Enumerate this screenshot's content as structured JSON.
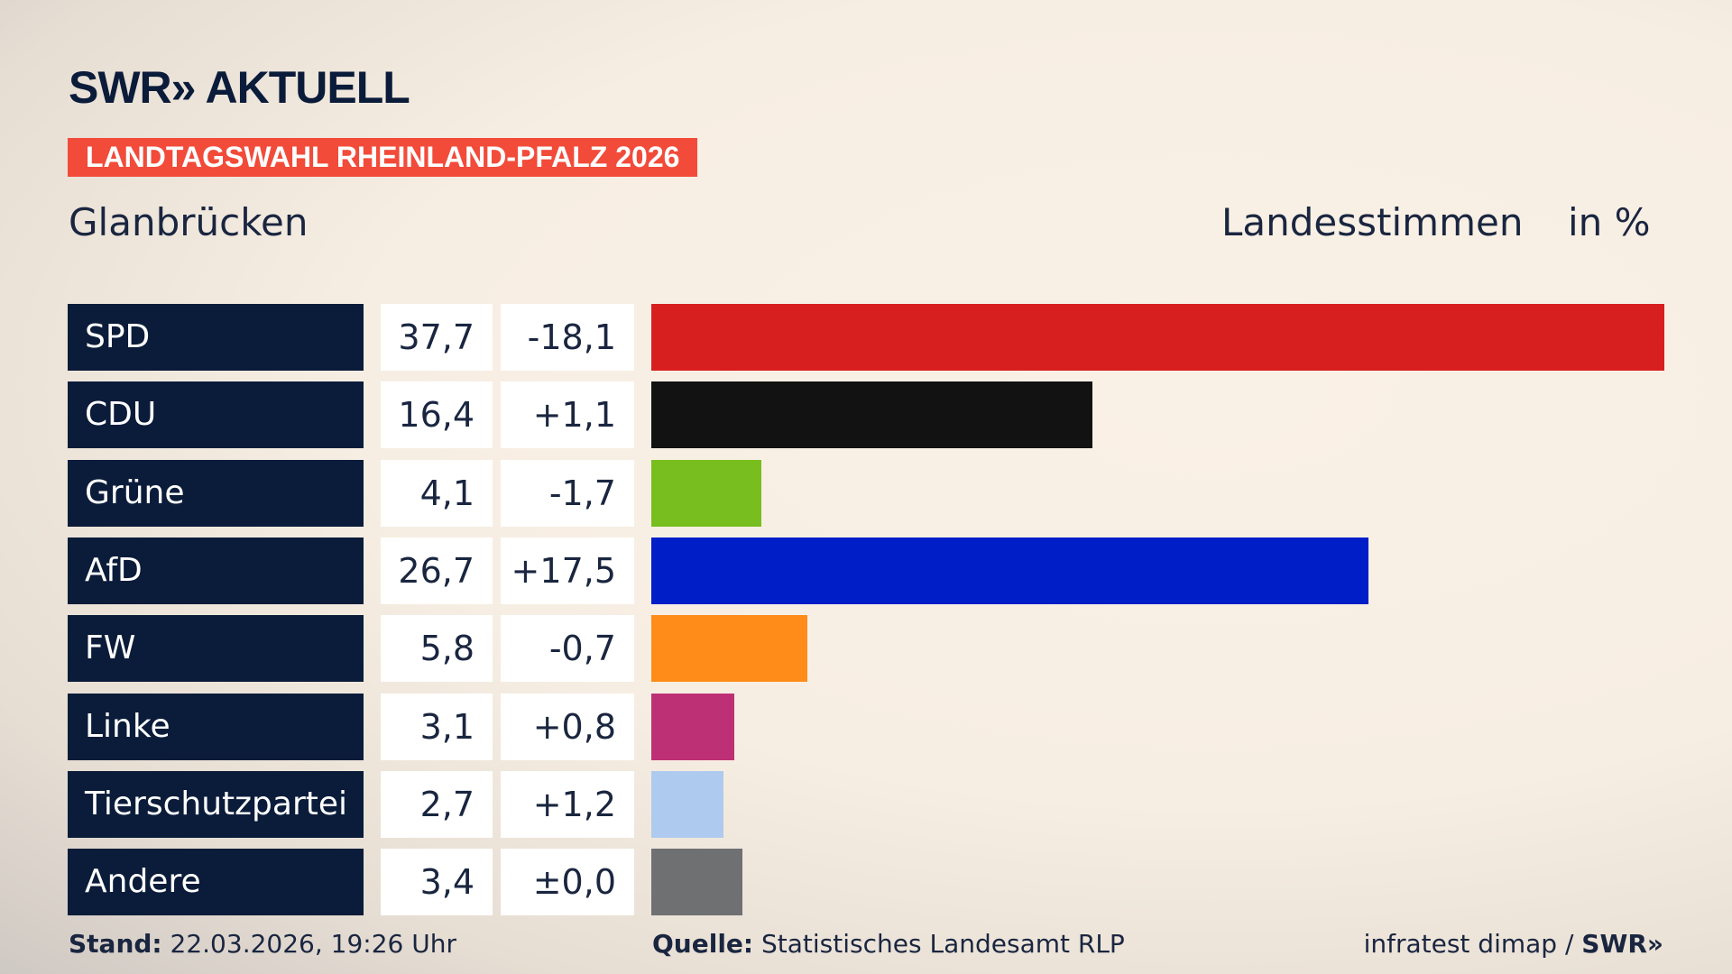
{
  "header": {
    "logo": "SWR» AKTUELL",
    "banner": "LANDTAGSWAHL RHEINLAND-PFALZ 2026",
    "place": "Glanbrücken",
    "measure": "Landesstimmen",
    "unit": "in %"
  },
  "chart_data": {
    "type": "bar",
    "orientation": "horizontal",
    "categories": [
      "SPD",
      "CDU",
      "Grüne",
      "AfD",
      "FW",
      "Linke",
      "Tierschutzpartei",
      "Andere"
    ],
    "values": [
      37.7,
      16.4,
      4.1,
      26.7,
      5.8,
      3.1,
      2.7,
      3.4
    ],
    "values_label": [
      "37,7",
      "16,4",
      "4,1",
      "26,7",
      "5,8",
      "3,1",
      "2,7",
      "3,4"
    ],
    "diffs": [
      "-18,1",
      "+1,1",
      "-1,7",
      "+17,5",
      "-0,7",
      "+0,8",
      "+1,2",
      "±0,0"
    ],
    "colors": [
      "#d81f20",
      "#121212",
      "#78be1e",
      "#001ec8",
      "#ff8c19",
      "#be3075",
      "#aecbef",
      "#6f7072"
    ]
  },
  "footer": {
    "stand_label": "Stand:",
    "stand": "22.03.2026, 19:26 Uhr",
    "source_label": "Quelle:",
    "source": "Statistisches Landesamt RLP",
    "credit": "infratest dimap / ",
    "credit_logo": "SWR»"
  }
}
